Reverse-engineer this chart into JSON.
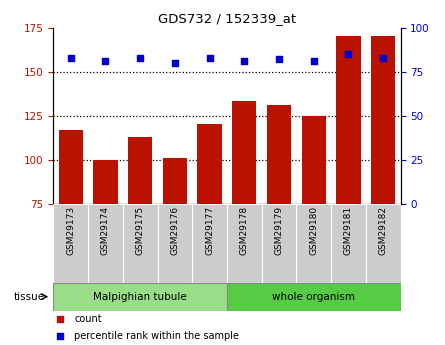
{
  "title": "GDS732 / 152339_at",
  "categories": [
    "GSM29173",
    "GSM29174",
    "GSM29175",
    "GSM29176",
    "GSM29177",
    "GSM29178",
    "GSM29179",
    "GSM29180",
    "GSM29181",
    "GSM29182"
  ],
  "bar_values": [
    117,
    100,
    113,
    101,
    120,
    133,
    131,
    125,
    170,
    170
  ],
  "dot_values": [
    83,
    81,
    83,
    80,
    83,
    81,
    82,
    81,
    85,
    83
  ],
  "ylim_left": [
    75,
    175
  ],
  "ylim_right": [
    0,
    100
  ],
  "yticks_left": [
    75,
    100,
    125,
    150,
    175
  ],
  "yticks_right": [
    0,
    25,
    50,
    75,
    100
  ],
  "bar_color": "#bb1100",
  "dot_color": "#0000cc",
  "tissue_groups": [
    {
      "label": "Malpighian tubule",
      "n": 5,
      "color": "#99dd88"
    },
    {
      "label": "whole organism",
      "n": 5,
      "color": "#55cc44"
    }
  ],
  "tissue_label": "tissue",
  "legend_items": [
    {
      "label": "count",
      "color": "#bb1100",
      "marker": "s"
    },
    {
      "label": "percentile rank within the sample",
      "color": "#0000cc",
      "marker": "s"
    }
  ],
  "gridline_values": [
    100,
    125,
    150
  ],
  "bar_width": 0.7,
  "xlabel_box_color": "#cccccc",
  "figure_bg": "#ffffff"
}
